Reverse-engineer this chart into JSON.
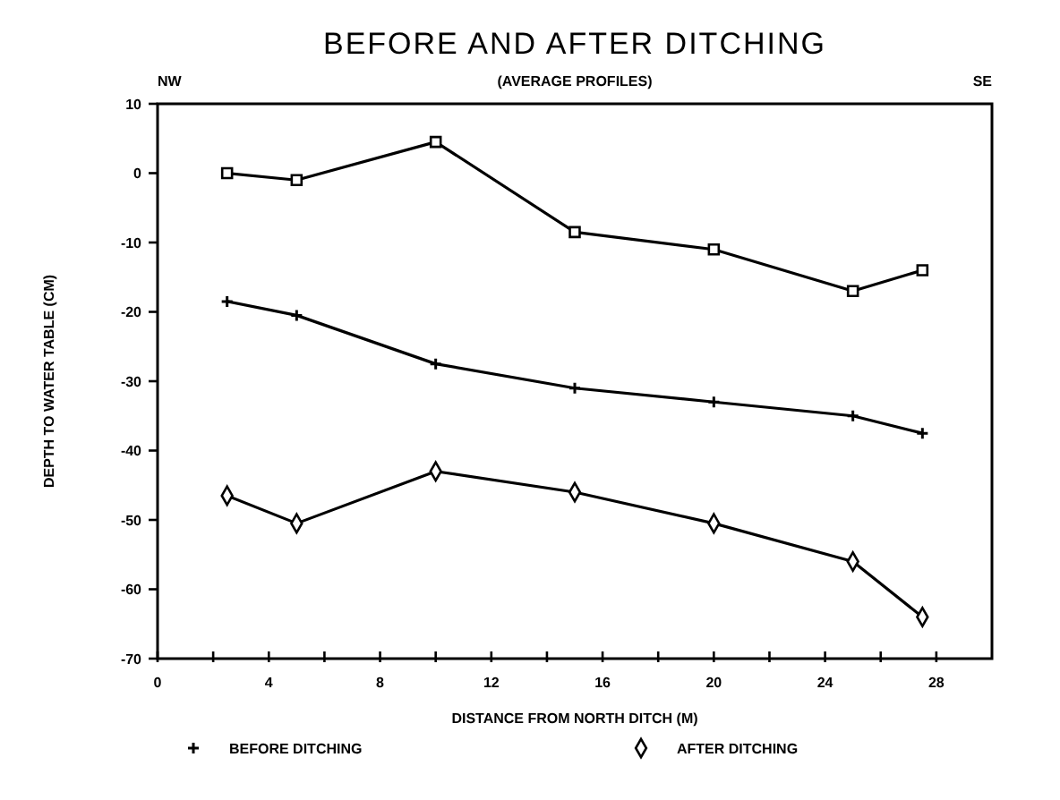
{
  "chart_data": {
    "type": "line",
    "title": "BEFORE AND AFTER DITCHING",
    "subtitle": "(AVERAGE PROFILES)",
    "xlabel": "DISTANCE FROM NORTH DITCH (M)",
    "ylabel": "DEPTH TO WATER TABLE (CM)",
    "annotations": [
      "NW",
      "SE"
    ],
    "x": [
      2.5,
      5,
      10,
      15,
      20,
      25,
      27.5
    ],
    "series": [
      {
        "color": "#000000",
        "marker": "square",
        "values": [
          0,
          -1,
          4.5,
          -8.5,
          -11,
          -17,
          -14
        ]
      },
      {
        "name": "BEFORE DITCHING",
        "color": "#000000",
        "marker": "cross",
        "values": [
          -18.5,
          -20.5,
          -27.5,
          -31,
          -33,
          -35,
          -37.5
        ]
      },
      {
        "name": "AFTER DITCHING",
        "color": "#000000",
        "marker": "diamond",
        "values": [
          -46.5,
          -50.5,
          -43,
          -46,
          -50.5,
          -56,
          -64
        ]
      }
    ],
    "xlim": [
      0,
      30
    ],
    "ylim": [
      -70,
      10
    ],
    "xticks": [
      0,
      {
        "value": 2,
        "label": null
      },
      4,
      {
        "value": 6,
        "label": null
      },
      8,
      {
        "value": 10,
        "label": null
      },
      12,
      {
        "value": 14,
        "label": null
      },
      16,
      {
        "value": 18,
        "label": null
      },
      20,
      {
        "value": 22,
        "label": null
      },
      24,
      {
        "value": 26,
        "label": null
      },
      28
    ],
    "yticks": [
      -70,
      -60,
      -50,
      -40,
      -30,
      -20,
      -10,
      0,
      10
    ],
    "grid": false,
    "legend": "bottom",
    "line_style": "solid"
  }
}
